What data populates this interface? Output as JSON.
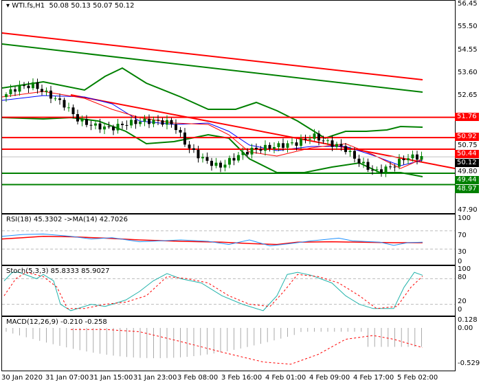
{
  "header": {
    "symbol": "WTI.fs,H1",
    "ohlc": "50.08 50.13 50.07 50.12"
  },
  "price_axis": [
    "56.45",
    "55.50",
    "54.55",
    "53.60",
    "52.65",
    "50.75",
    "49.80",
    "47.90"
  ],
  "price_levels": [
    {
      "label": "51.76",
      "value": 51.76,
      "color": "#ff0000"
    },
    {
      "label": "50.92",
      "value": 50.92,
      "color": "#ff0000"
    },
    {
      "label": "50.44",
      "value": 50.44,
      "color": "#ff0000"
    },
    {
      "label": "50.12",
      "value": 50.12,
      "color": "#000000"
    },
    {
      "label": "49.44",
      "value": 49.44,
      "color": "#008000"
    },
    {
      "label": "48.97",
      "value": 48.97,
      "color": "#008000"
    }
  ],
  "price_path": [
    52.6,
    53.0,
    53.1,
    52.7,
    52.3,
    51.6,
    51.4,
    51.3,
    51.5,
    51.6,
    51.6,
    51.5,
    50.5,
    50.0,
    49.7,
    50.1,
    50.4,
    50.5,
    50.6,
    50.7,
    51.0,
    50.7,
    50.5,
    49.9,
    49.5,
    49.7,
    50.1,
    50.12
  ],
  "rsi": {
    "label": "RSI(18) 45.3302  ->MA(14) 42.7026",
    "levels": [
      "100",
      "70",
      "30",
      "0"
    ]
  },
  "stoch": {
    "label": "Stoch(5,3,3) 85.8333 85.9027",
    "levels": [
      "100",
      "80",
      "20",
      "0"
    ]
  },
  "macd": {
    "label": "MACD(12,26,9) -0.210 -0.258",
    "levels": [
      "0.128",
      "0.00",
      "-0.529"
    ]
  },
  "time_axis": [
    "30 Jan 2020",
    "31 Jan 07:00",
    "31 Jan 15:00",
    "31 Jan 23:00",
    "3 Feb 08:00",
    "3 Feb 16:00",
    "4 Feb 01:00",
    "4 Feb 09:00",
    "4 Feb 17:00",
    "5 Feb 02:00"
  ],
  "colors": {
    "bull": "#008000",
    "bear": "#000000",
    "resistance": "#ff0000",
    "support": "#008000",
    "rsi": "#1e90ff",
    "stoch": "#20b2aa",
    "signal": "#ff0000"
  }
}
